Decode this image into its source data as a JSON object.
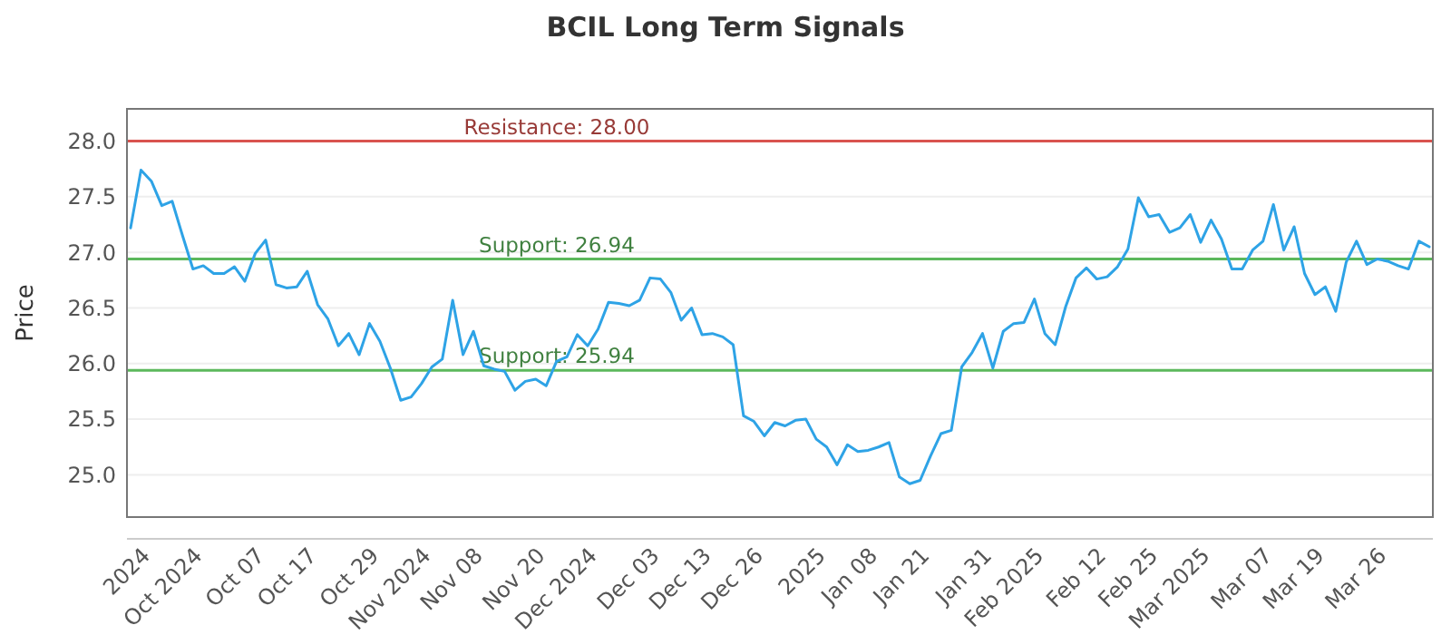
{
  "chart_data": {
    "type": "line",
    "title": "BCIL Long Term Signals",
    "ylabel": "Price",
    "categories": [
      null,
      null,
      "2024",
      null,
      null,
      null,
      null,
      "Oct 2024",
      null,
      null,
      null,
      null,
      null,
      "Oct 07",
      null,
      null,
      null,
      null,
      "Oct 17",
      null,
      null,
      null,
      null,
      null,
      "Oct 29",
      null,
      null,
      null,
      null,
      "Nov 2024",
      null,
      null,
      null,
      null,
      "Nov 08",
      null,
      null,
      null,
      null,
      null,
      "Nov 20",
      null,
      null,
      null,
      null,
      "Dec 2024",
      null,
      null,
      null,
      null,
      null,
      "Dec 03",
      null,
      null,
      null,
      null,
      "Dec 13",
      null,
      null,
      null,
      null,
      "Dec 26",
      null,
      null,
      null,
      null,
      null,
      "2025",
      null,
      null,
      null,
      null,
      "Jan 08",
      null,
      null,
      null,
      null,
      "Jan 21",
      null,
      null,
      null,
      null,
      null,
      "Jan 31",
      null,
      null,
      null,
      null,
      "Feb 2025",
      null,
      null,
      null,
      null,
      null,
      "Feb 12",
      null,
      null,
      null,
      null,
      "Feb 25",
      null,
      null,
      null,
      null,
      "Mar 2025",
      null,
      null,
      null,
      null,
      null,
      "Mar 07",
      null,
      null,
      null,
      null,
      "Mar 19",
      null,
      null,
      null,
      null,
      null,
      "Mar 26",
      null,
      null,
      null,
      null
    ],
    "series": [
      {
        "color": "#2ea3e6",
        "values": [
          27.22,
          27.74,
          27.64,
          27.42,
          27.46,
          27.15,
          26.85,
          26.88,
          26.81,
          26.81,
          26.87,
          26.74,
          26.99,
          27.11,
          26.71,
          26.68,
          26.69,
          26.83,
          26.53,
          26.4,
          26.16,
          26.27,
          26.08,
          26.36,
          26.2,
          25.96,
          25.67,
          25.7,
          25.82,
          25.97,
          26.04,
          26.57,
          26.08,
          26.29,
          25.98,
          25.95,
          25.93,
          25.76,
          25.84,
          25.86,
          25.8,
          26.02,
          26.06,
          26.26,
          26.16,
          26.31,
          26.55,
          26.54,
          26.52,
          26.57,
          26.77,
          26.76,
          26.64,
          26.39,
          26.5,
          26.26,
          26.27,
          26.24,
          26.17,
          25.53,
          25.48,
          25.35,
          25.47,
          25.44,
          25.49,
          25.5,
          25.32,
          25.25,
          25.09,
          25.27,
          25.21,
          25.22,
          25.25,
          25.29,
          24.98,
          24.92,
          24.95,
          25.17,
          25.37,
          25.4,
          25.97,
          26.1,
          26.27,
          25.96,
          26.29,
          26.36,
          26.37,
          26.58,
          26.27,
          26.17,
          26.51,
          26.77,
          26.86,
          26.76,
          26.78,
          26.87,
          27.03,
          27.49,
          27.32,
          27.34,
          27.18,
          27.22,
          27.34,
          27.09,
          27.29,
          27.12,
          26.85,
          26.85,
          27.02,
          27.1,
          27.43,
          27.02,
          27.23,
          26.81,
          26.62,
          26.69,
          26.47,
          26.91,
          27.1,
          26.89,
          26.94,
          26.92,
          26.88,
          26.85,
          27.1,
          27.05
        ]
      }
    ],
    "ylim": [
      24.62,
      28.29
    ],
    "yticks": [
      {
        "value": 25,
        "label": "25.0"
      },
      {
        "value": 25.5,
        "label": "25.5"
      },
      {
        "value": 26,
        "label": "26.0"
      },
      {
        "value": 26.5,
        "label": "26.5"
      },
      {
        "value": 27,
        "label": "27.0"
      },
      {
        "value": 27.5,
        "label": "27.5"
      },
      {
        "value": 28,
        "label": "28.0"
      }
    ],
    "grid": "y",
    "legend": false,
    "marker": "none",
    "line_style": "solid",
    "ref_lines": [
      {
        "axis": "y",
        "value": 28,
        "label": "Resistance: 28.00",
        "color": "#d9534f"
      },
      {
        "axis": "y",
        "value": 26.94,
        "label": "Support: 26.94",
        "color": "#5cb85c"
      },
      {
        "axis": "y",
        "value": 25.94,
        "label": "Support: 25.94",
        "color": "#5cb85c"
      }
    ]
  }
}
